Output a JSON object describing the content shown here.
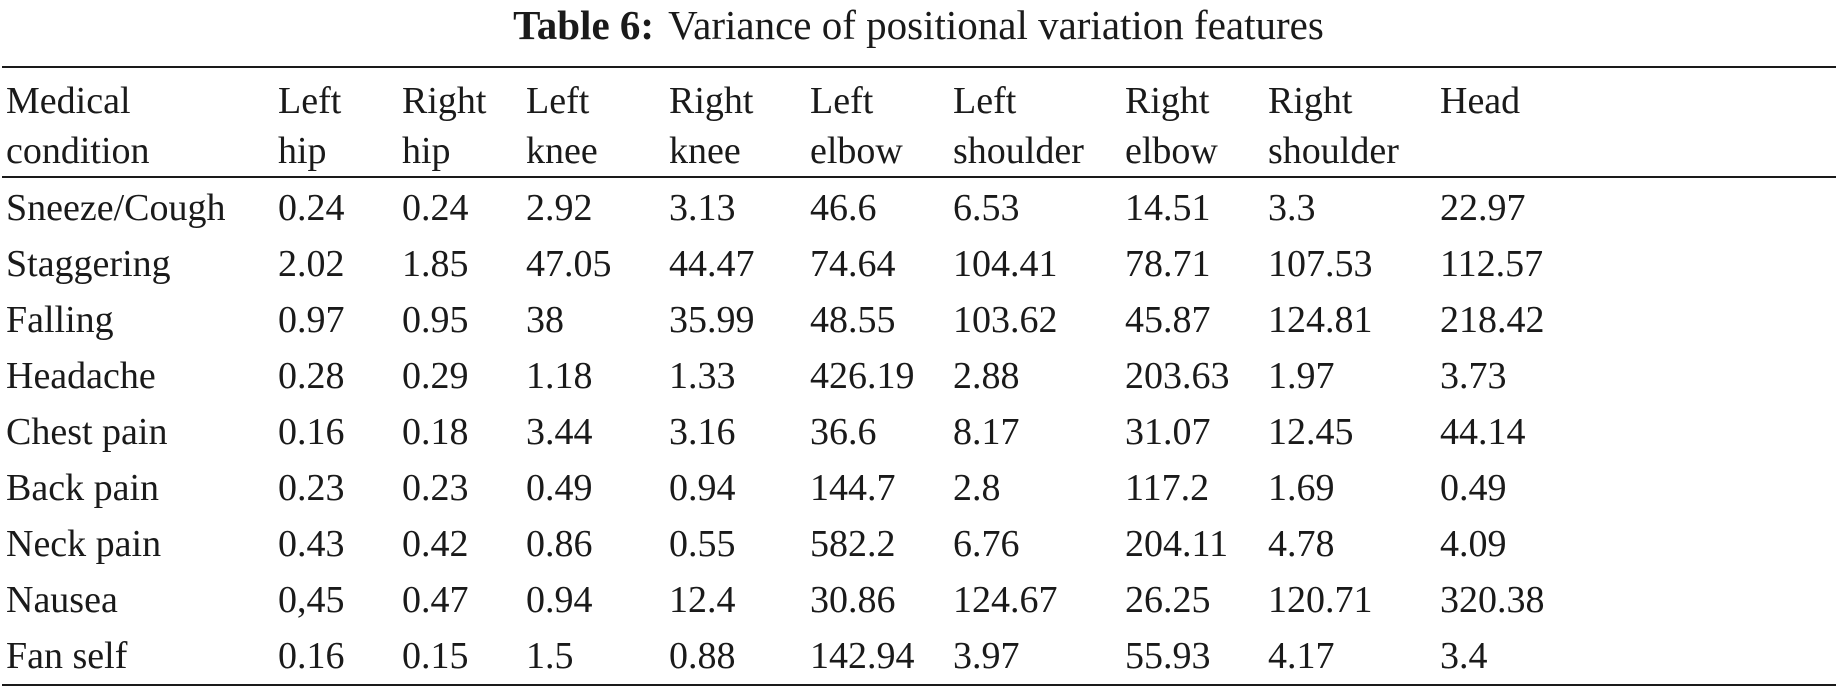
{
  "caption": {
    "label": "Table 6:",
    "text": "Variance of positional variation features"
  },
  "table": {
    "headers": [
      {
        "line1": "Medical",
        "line2": "condition"
      },
      {
        "line1": "Left",
        "line2": "hip"
      },
      {
        "line1": "Right",
        "line2": "hip"
      },
      {
        "line1": "Left",
        "line2": "knee"
      },
      {
        "line1": "Right",
        "line2": "knee"
      },
      {
        "line1": "Left",
        "line2": "elbow"
      },
      {
        "line1": "Left",
        "line2": "shoulder"
      },
      {
        "line1": "Right",
        "line2": "elbow"
      },
      {
        "line1": "Right",
        "line2": "shoulder"
      },
      {
        "line1": "Head",
        "line2": ""
      }
    ],
    "rows": [
      [
        "Sneeze/Cough",
        "0.24",
        "0.24",
        "2.92",
        "3.13",
        "46.6",
        "6.53",
        "14.51",
        "3.3",
        "22.97"
      ],
      [
        "Staggering",
        "2.02",
        "1.85",
        "47.05",
        "44.47",
        "74.64",
        "104.41",
        "78.71",
        "107.53",
        "112.57"
      ],
      [
        "Falling",
        "0.97",
        "0.95",
        "38",
        "35.99",
        "48.55",
        "103.62",
        "45.87",
        "124.81",
        "218.42"
      ],
      [
        "Headache",
        "0.28",
        "0.29",
        "1.18",
        "1.33",
        "426.19",
        "2.88",
        "203.63",
        "1.97",
        "3.73"
      ],
      [
        "Chest pain",
        "0.16",
        "0.18",
        "3.44",
        "3.16",
        "36.6",
        "8.17",
        "31.07",
        "12.45",
        "44.14"
      ],
      [
        "Back pain",
        "0.23",
        "0.23",
        "0.49",
        "0.94",
        "144.7",
        "2.8",
        "117.2",
        "1.69",
        "0.49"
      ],
      [
        "Neck pain",
        "0.43",
        "0.42",
        "0.86",
        "0.55",
        "582.2",
        "6.76",
        "204.11",
        "4.78",
        "4.09"
      ],
      [
        "Nausea",
        "0,45",
        "0.47",
        "0.94",
        "12.4",
        "30.86",
        "124.67",
        "26.25",
        "120.71",
        "320.38"
      ],
      [
        "Fan self",
        "0.16",
        "0.15",
        "1.5",
        "0.88",
        "142.94",
        "3.97",
        "55.93",
        "4.17",
        "3.4"
      ]
    ]
  }
}
